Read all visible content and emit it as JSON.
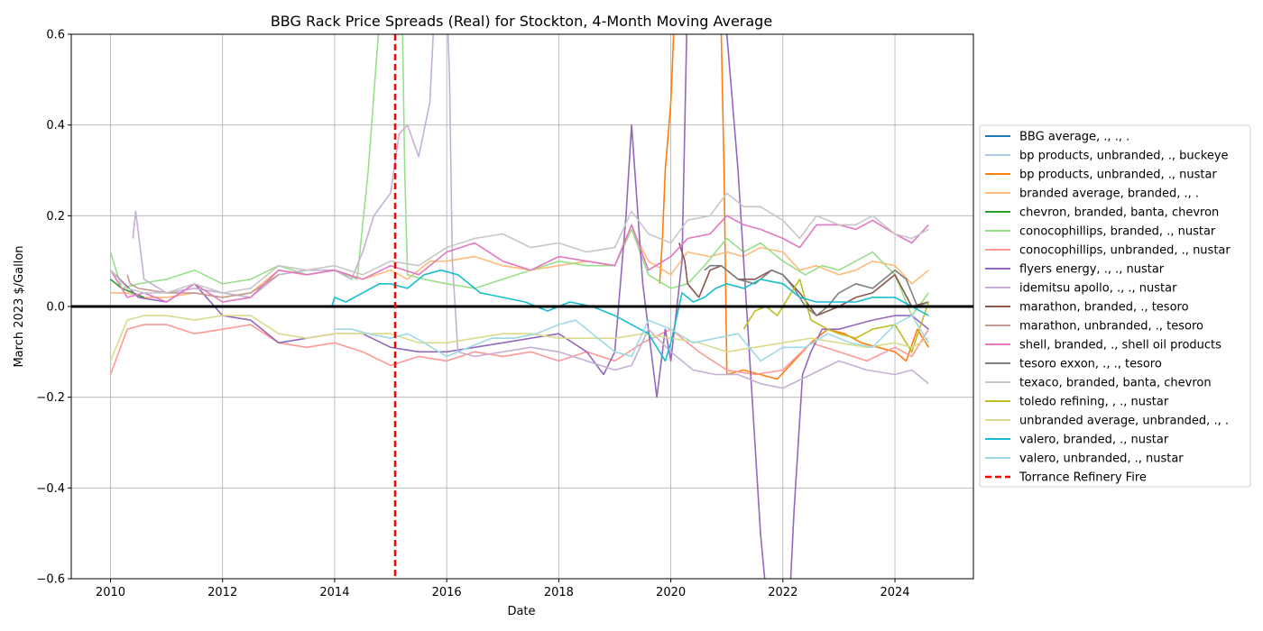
{
  "chart_data": {
    "type": "line",
    "title": "BBG Rack Price Spreads (Real) for Stockton, 4-Month Moving Average",
    "xlabel": "Date",
    "ylabel": "March 2023 $/Gallon",
    "xlim": [
      2009.3,
      2025.4
    ],
    "ylim": [
      -0.6,
      0.6
    ],
    "x_ticks": [
      "2010",
      "2012",
      "2014",
      "2016",
      "2018",
      "2020",
      "2022",
      "2024"
    ],
    "y_ticks": [
      "−0.6",
      "−0.4",
      "−0.2",
      "0.0",
      "0.2",
      "0.4",
      "0.6"
    ],
    "grid": true,
    "legend_position": "center-right outside",
    "zero_line": {
      "y": 0.0,
      "color": "#000000"
    },
    "event_lines": [
      {
        "name": "Torrance Refinery Fire",
        "x": 2015.08,
        "color": "#ff0000",
        "style": "dashed"
      }
    ],
    "series": [
      {
        "name": "BBG average, ., ., .",
        "color": "#1f77b4",
        "x": [],
        "y": []
      },
      {
        "name": "bp products, unbranded, ., buckeye",
        "color": "#aec7e8",
        "x": [],
        "y": []
      },
      {
        "name": "bp products, unbranded, ., nustar",
        "color": "#ff7f0e",
        "x": [
          2019.8,
          2019.85,
          2019.9,
          2020.0,
          2020.05,
          2020.08,
          2020.15,
          2020.3,
          2020.5,
          2020.7,
          2020.85,
          2020.9,
          2020.95,
          2021.0,
          2021.3,
          2021.6,
          2021.9,
          2022.2,
          2022.5,
          2022.8,
          2023.1,
          2023.4,
          2023.7,
          2024.0,
          2024.2,
          2024.4,
          2024.6
        ],
        "y": [
          0.05,
          0.15,
          0.3,
          0.45,
          0.6,
          0.7,
          0.7,
          0.7,
          0.7,
          0.7,
          0.7,
          0.6,
          0.3,
          -0.15,
          -0.14,
          -0.15,
          -0.16,
          -0.12,
          -0.08,
          -0.05,
          -0.06,
          -0.08,
          -0.09,
          -0.1,
          -0.12,
          -0.05,
          -0.09
        ]
      },
      {
        "name": "branded average, branded, ., .",
        "color": "#ffbb78",
        "x": [
          2010.0,
          2010.3,
          2010.6,
          2011.0,
          2011.5,
          2012.0,
          2012.5,
          2013.0,
          2013.5,
          2014.0,
          2014.5,
          2015.0,
          2015.3,
          2015.7,
          2016.0,
          2016.5,
          2017.0,
          2017.5,
          2018.0,
          2018.5,
          2019.0,
          2019.3,
          2019.6,
          2020.0,
          2020.3,
          2020.7,
          2021.0,
          2021.3,
          2021.6,
          2022.0,
          2022.3,
          2022.6,
          2023.0,
          2023.3,
          2023.6,
          2024.0,
          2024.3,
          2024.6
        ],
        "y": [
          0.03,
          0.03,
          0.02,
          0.02,
          0.03,
          0.02,
          0.03,
          0.08,
          0.07,
          0.08,
          0.06,
          0.08,
          0.06,
          0.1,
          0.1,
          0.11,
          0.09,
          0.08,
          0.09,
          0.1,
          0.09,
          0.17,
          0.1,
          0.07,
          0.12,
          0.11,
          0.12,
          0.11,
          0.13,
          0.12,
          0.08,
          0.09,
          0.07,
          0.08,
          0.1,
          0.09,
          0.05,
          0.08
        ]
      },
      {
        "name": "chevron, branded, banta, chevron",
        "color": "#2ca02c",
        "x": [
          2010.0,
          2010.2,
          2010.4,
          2010.6
        ],
        "y": [
          0.06,
          0.04,
          0.03,
          0.02
        ]
      },
      {
        "name": "conocophillips, branded, ., nustar",
        "color": "#98df8a",
        "x": [
          2010.0,
          2010.2,
          2010.5,
          2011.0,
          2011.5,
          2012.0,
          2012.5,
          2013.0,
          2013.5,
          2014.0,
          2014.4,
          2014.6,
          2014.75,
          2014.85,
          2015.0,
          2015.1,
          2015.2,
          2015.25,
          2015.3,
          2015.6,
          2016.0,
          2016.5,
          2017.0,
          2017.5,
          2018.0,
          2018.5,
          2019.0,
          2019.3,
          2019.6,
          2020.0,
          2020.3,
          2020.6,
          2021.0,
          2021.3,
          2021.6,
          2022.0,
          2022.4,
          2022.7,
          2023.0,
          2023.3,
          2023.6,
          2024.0,
          2024.3,
          2024.6
        ],
        "y": [
          0.12,
          0.04,
          0.05,
          0.06,
          0.08,
          0.05,
          0.06,
          0.09,
          0.07,
          0.08,
          0.06,
          0.3,
          0.55,
          0.7,
          0.7,
          0.7,
          0.7,
          0.3,
          0.07,
          0.06,
          0.05,
          0.04,
          0.06,
          0.08,
          0.1,
          0.09,
          0.09,
          0.17,
          0.07,
          0.04,
          0.05,
          0.09,
          0.15,
          0.12,
          0.14,
          0.1,
          0.07,
          0.09,
          0.08,
          0.1,
          0.12,
          0.07,
          -0.02,
          0.03
        ]
      },
      {
        "name": "conocophillips, unbranded, ., nustar",
        "color": "#ff9896",
        "x": [
          2010.0,
          2010.3,
          2010.6,
          2011.0,
          2011.5,
          2012.0,
          2012.5,
          2013.0,
          2013.5,
          2014.0,
          2014.5,
          2015.0,
          2015.5,
          2016.0,
          2016.5,
          2017.0,
          2017.5,
          2018.0,
          2018.5,
          2019.0,
          2019.5,
          2020.0,
          2020.5,
          2021.0,
          2021.5,
          2022.0,
          2022.5,
          2023.0,
          2023.5,
          2024.0,
          2024.3,
          2024.6
        ],
        "y": [
          -0.15,
          -0.05,
          -0.04,
          -0.04,
          -0.06,
          -0.05,
          -0.04,
          -0.08,
          -0.09,
          -0.08,
          -0.1,
          -0.13,
          -0.11,
          -0.12,
          -0.1,
          -0.11,
          -0.1,
          -0.12,
          -0.1,
          -0.12,
          -0.08,
          -0.05,
          -0.1,
          -0.14,
          -0.15,
          -0.14,
          -0.08,
          -0.1,
          -0.12,
          -0.09,
          -0.11,
          -0.05
        ]
      },
      {
        "name": "flyers energy, ., ., nustar",
        "color": "#9467bd",
        "x": [
          2010.0,
          2010.5,
          2011.0,
          2011.5,
          2012.0,
          2012.5,
          2013.0,
          2013.5,
          2014.0,
          2014.5,
          2015.0,
          2015.5,
          2016.0,
          2016.5,
          2017.0,
          2017.5,
          2018.0,
          2018.5,
          2018.8,
          2019.0,
          2019.2,
          2019.3,
          2019.5,
          2019.75,
          2019.9,
          2020.0,
          2020.2,
          2020.3,
          2020.4,
          2020.6,
          2020.8,
          2021.0,
          2021.2,
          2021.4,
          2021.6,
          2021.75,
          2021.9,
          2022.0,
          2022.1,
          2022.2,
          2022.35,
          2022.5,
          2022.7,
          2023.0,
          2023.3,
          2023.6,
          2024.0,
          2024.3,
          2024.6
        ],
        "y": [
          0.08,
          0.02,
          0.01,
          0.05,
          -0.02,
          -0.03,
          -0.08,
          -0.07,
          -0.06,
          -0.06,
          -0.09,
          -0.1,
          -0.1,
          -0.09,
          -0.08,
          -0.07,
          -0.06,
          -0.1,
          -0.15,
          -0.1,
          0.2,
          0.4,
          0.05,
          -0.2,
          -0.05,
          -0.12,
          0.1,
          0.7,
          0.7,
          0.7,
          0.7,
          0.6,
          0.3,
          -0.1,
          -0.5,
          -0.7,
          -0.7,
          -0.7,
          -0.7,
          -0.45,
          -0.15,
          -0.1,
          -0.05,
          -0.05,
          -0.04,
          -0.03,
          -0.02,
          -0.02,
          -0.05
        ]
      },
      {
        "name": "idemitsu apollo, ., ., nustar",
        "color": "#c5b0d5",
        "x": [
          2010.4,
          2010.45,
          2010.6,
          2011.0,
          2011.5,
          2012.0,
          2012.5,
          2013.0,
          2013.5,
          2014.0,
          2014.3,
          2014.5,
          2014.7,
          2015.0,
          2015.15,
          2015.3,
          2015.5,
          2015.7,
          2015.8,
          2015.85,
          2016.0,
          2016.05,
          2016.1,
          2016.2,
          2016.5,
          2017.0,
          2017.5,
          2018.0,
          2018.5,
          2019.0,
          2019.3,
          2019.6,
          2020.0,
          2020.4,
          2020.8,
          2021.2,
          2021.6,
          2022.0,
          2022.5,
          2023.0,
          2023.5,
          2024.0,
          2024.3,
          2024.6
        ],
        "y": [
          0.15,
          0.21,
          0.06,
          0.03,
          0.04,
          0.03,
          0.02,
          0.07,
          0.08,
          0.08,
          0.06,
          0.12,
          0.2,
          0.25,
          0.38,
          0.4,
          0.33,
          0.45,
          0.7,
          0.7,
          0.7,
          0.5,
          0.1,
          -0.1,
          -0.11,
          -0.1,
          -0.09,
          -0.1,
          -0.12,
          -0.14,
          -0.13,
          -0.05,
          -0.1,
          -0.14,
          -0.15,
          -0.15,
          -0.17,
          -0.18,
          -0.15,
          -0.12,
          -0.14,
          -0.15,
          -0.14,
          -0.17
        ]
      },
      {
        "name": "marathon, branded, ., tesoro",
        "color": "#8c564b",
        "x": [
          2020.15,
          2020.25,
          2020.3,
          2020.5,
          2020.7,
          2020.9,
          2021.2,
          2021.5,
          2021.8,
          2022.0,
          2022.3,
          2022.6,
          2023.0,
          2023.3,
          2023.6,
          2024.0,
          2024.3,
          2024.6
        ],
        "y": [
          0.14,
          0.1,
          0.05,
          0.02,
          0.08,
          0.09,
          0.06,
          0.06,
          0.08,
          0.07,
          0.03,
          -0.02,
          0.0,
          0.02,
          0.03,
          0.07,
          0.0,
          0.01
        ]
      },
      {
        "name": "marathon, unbranded, ., tesoro",
        "color": "#c49c94",
        "x": [
          2010.3,
          2010.35,
          2010.5,
          2011.0,
          2011.5,
          2012.0,
          2012.5,
          2013.0
        ],
        "y": [
          0.07,
          0.05,
          0.04,
          0.03,
          0.03,
          0.02,
          0.03,
          0.07
        ]
      },
      {
        "name": "shell, branded, ., shell oil products",
        "color": "#e377c2",
        "x": [
          2010.0,
          2010.3,
          2010.6,
          2011.0,
          2011.5,
          2012.0,
          2012.5,
          2013.0,
          2013.5,
          2014.0,
          2014.5,
          2015.0,
          2015.5,
          2016.0,
          2016.5,
          2017.0,
          2017.5,
          2018.0,
          2018.5,
          2019.0,
          2019.3,
          2019.6,
          2020.0,
          2020.3,
          2020.7,
          2021.0,
          2021.3,
          2021.6,
          2022.0,
          2022.3,
          2022.6,
          2023.0,
          2023.3,
          2023.6,
          2024.0,
          2024.3,
          2024.6
        ],
        "y": [
          0.08,
          0.02,
          0.03,
          0.01,
          0.05,
          0.01,
          0.02,
          0.08,
          0.07,
          0.08,
          0.06,
          0.09,
          0.07,
          0.12,
          0.14,
          0.1,
          0.08,
          0.11,
          0.1,
          0.09,
          0.18,
          0.08,
          0.11,
          0.15,
          0.16,
          0.2,
          0.18,
          0.17,
          0.15,
          0.13,
          0.18,
          0.18,
          0.17,
          0.19,
          0.16,
          0.14,
          0.18
        ]
      },
      {
        "name": "tesoro exxon, ., ., tesoro",
        "color": "#7f7f7f",
        "x": [
          2020.6,
          2020.7,
          2020.9,
          2021.2,
          2021.5,
          2021.8,
          2022.0,
          2022.2,
          2022.4,
          2022.6,
          2022.8,
          2023.0,
          2023.3,
          2023.6,
          2024.0,
          2024.2,
          2024.4,
          2024.6
        ],
        "y": [
          0.08,
          0.09,
          0.09,
          0.06,
          0.05,
          0.08,
          0.07,
          0.04,
          0.0,
          -0.02,
          0.0,
          0.03,
          0.05,
          0.04,
          0.08,
          0.06,
          0.0,
          0.01
        ]
      },
      {
        "name": "texaco, branded, banta, chevron",
        "color": "#c7c7c7",
        "x": [
          2010.0,
          2010.3,
          2010.6,
          2011.0,
          2011.5,
          2012.0,
          2012.5,
          2013.0,
          2013.5,
          2014.0,
          2014.5,
          2015.0,
          2015.5,
          2016.0,
          2016.5,
          2017.0,
          2017.5,
          2018.0,
          2018.5,
          2019.0,
          2019.3,
          2019.6,
          2020.0,
          2020.3,
          2020.7,
          2021.0,
          2021.3,
          2021.6,
          2022.0,
          2022.3,
          2022.6,
          2023.0,
          2023.3,
          2023.6,
          2024.0,
          2024.3,
          2024.6
        ],
        "y": [
          0.08,
          0.04,
          0.03,
          0.03,
          0.05,
          0.03,
          0.04,
          0.09,
          0.08,
          0.09,
          0.07,
          0.1,
          0.09,
          0.13,
          0.15,
          0.16,
          0.13,
          0.14,
          0.12,
          0.13,
          0.21,
          0.16,
          0.14,
          0.19,
          0.2,
          0.25,
          0.22,
          0.22,
          0.19,
          0.15,
          0.2,
          0.18,
          0.18,
          0.2,
          0.16,
          0.15,
          0.17
        ]
      },
      {
        "name": "toledo refining,  , ., nustar",
        "color": "#bcbd22",
        "x": [
          2021.3,
          2021.5,
          2021.7,
          2021.9,
          2022.1,
          2022.3,
          2022.5,
          2022.8,
          2023.0,
          2023.3,
          2023.6,
          2024.0,
          2024.3,
          2024.6
        ],
        "y": [
          -0.05,
          -0.01,
          0.0,
          -0.02,
          0.02,
          0.06,
          -0.03,
          -0.05,
          -0.06,
          -0.07,
          -0.05,
          -0.04,
          -0.1,
          0.01
        ]
      },
      {
        "name": "unbranded average, unbranded, ., .",
        "color": "#dbdb8d",
        "x": [
          2010.0,
          2010.3,
          2010.6,
          2011.0,
          2011.5,
          2012.0,
          2012.5,
          2013.0,
          2013.5,
          2014.0,
          2014.5,
          2015.0,
          2015.5,
          2016.0,
          2016.5,
          2017.0,
          2017.5,
          2018.0,
          2018.5,
          2019.0,
          2019.5,
          2020.0,
          2020.5,
          2021.0,
          2021.5,
          2022.0,
          2022.5,
          2023.0,
          2023.5,
          2024.0,
          2024.3,
          2024.6
        ],
        "y": [
          -0.12,
          -0.03,
          -0.02,
          -0.02,
          -0.03,
          -0.02,
          -0.02,
          -0.06,
          -0.07,
          -0.06,
          -0.06,
          -0.06,
          -0.08,
          -0.08,
          -0.07,
          -0.06,
          -0.06,
          -0.07,
          -0.07,
          -0.07,
          -0.06,
          -0.07,
          -0.08,
          -0.1,
          -0.09,
          -0.08,
          -0.07,
          -0.08,
          -0.09,
          -0.08,
          -0.09,
          -0.07
        ]
      },
      {
        "name": "valero, branded, ., nustar",
        "color": "#17becf",
        "x": [
          2013.95,
          2014.0,
          2014.2,
          2014.5,
          2014.8,
          2015.0,
          2015.3,
          2015.6,
          2015.9,
          2016.2,
          2016.6,
          2017.0,
          2017.4,
          2017.8,
          2018.2,
          2018.6,
          2019.0,
          2019.3,
          2019.6,
          2019.9,
          2020.0,
          2020.2,
          2020.4,
          2020.6,
          2020.8,
          2021.0,
          2021.3,
          2021.6,
          2022.0,
          2022.3,
          2022.6,
          2023.0,
          2023.3,
          2023.6,
          2024.0,
          2024.3,
          2024.6
        ],
        "y": [
          0.0,
          0.02,
          0.01,
          0.03,
          0.05,
          0.05,
          0.04,
          0.07,
          0.08,
          0.07,
          0.03,
          0.02,
          0.01,
          -0.01,
          0.01,
          0.0,
          -0.02,
          -0.04,
          -0.06,
          -0.12,
          -0.08,
          0.03,
          0.01,
          0.02,
          0.04,
          0.05,
          0.04,
          0.06,
          0.05,
          0.02,
          0.01,
          0.01,
          0.01,
          0.02,
          0.02,
          0.0,
          -0.02
        ]
      },
      {
        "name": "valero, unbranded, ., nustar",
        "color": "#9edae5",
        "x": [
          2014.0,
          2014.3,
          2014.6,
          2015.0,
          2015.3,
          2015.6,
          2016.0,
          2016.4,
          2016.8,
          2017.2,
          2017.6,
          2018.0,
          2018.3,
          2018.6,
          2019.0,
          2019.3,
          2019.6,
          2020.0,
          2020.4,
          2020.8,
          2021.2,
          2021.6,
          2022.0,
          2022.4,
          2022.8,
          2023.2,
          2023.6,
          2024.0,
          2024.3,
          2024.6
        ],
        "y": [
          -0.05,
          -0.05,
          -0.06,
          -0.07,
          -0.06,
          -0.08,
          -0.11,
          -0.09,
          -0.07,
          -0.07,
          -0.06,
          -0.04,
          -0.03,
          -0.06,
          -0.1,
          -0.11,
          -0.03,
          -0.05,
          -0.08,
          -0.07,
          -0.06,
          -0.12,
          -0.09,
          -0.09,
          -0.06,
          -0.08,
          -0.09,
          -0.04,
          -0.02,
          -0.08
        ]
      }
    ]
  }
}
